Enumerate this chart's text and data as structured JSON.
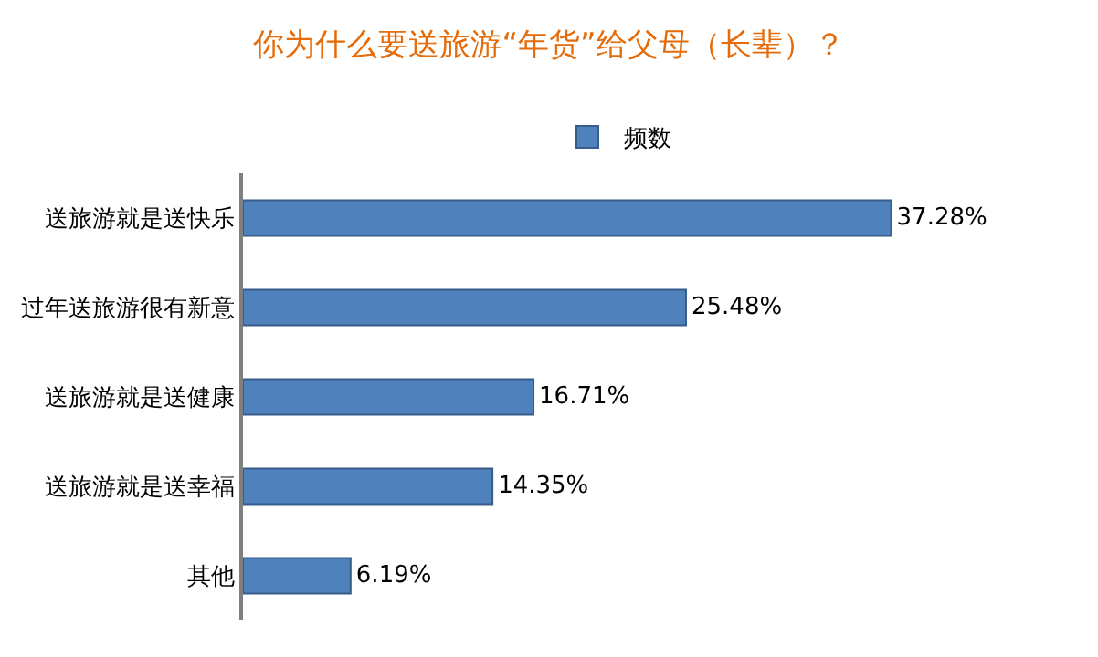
{
  "chart_data": {
    "type": "bar",
    "orientation": "horizontal",
    "title": "你为什么要送旅游“年货”给父母（长辈）？",
    "categories": [
      "送旅游就是送快乐",
      "过年送旅游很有新意",
      "送旅游就是送健康",
      "送旅游就是送幸福",
      "其他"
    ],
    "series": [
      {
        "name": "频数",
        "color": "#4f81bd",
        "values": [
          37.28,
          25.48,
          16.71,
          14.35,
          6.19
        ],
        "value_labels": [
          "37.28%",
          "25.48%",
          "16.71%",
          "14.35%",
          "6.19%"
        ]
      }
    ],
    "legend": "top",
    "tick_labels": "y"
  }
}
